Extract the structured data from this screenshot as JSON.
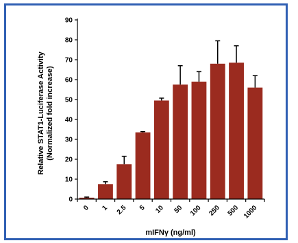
{
  "chart_data": {
    "type": "bar",
    "categories": [
      "0",
      "1",
      "2.5",
      "5",
      "10",
      "50",
      "100",
      "250",
      "500",
      "1000"
    ],
    "values": [
      0.7,
      7.5,
      17.5,
      33.5,
      49.5,
      57.5,
      59,
      68,
      68.5,
      56
    ],
    "errors": [
      0.3,
      1.2,
      4,
      0.4,
      1.2,
      9.5,
      5,
      11.5,
      8.5,
      6
    ],
    "xlabel": "mIFNγ (ng/ml)",
    "ylabel_line1": "Relative STAT1-Luciferase Activity",
    "ylabel_line2": "(Normalized fold increase)",
    "ylim": [
      0,
      90
    ],
    "yticks": [
      0,
      10,
      20,
      30,
      40,
      50,
      60,
      70,
      80,
      90
    ],
    "bar_color": "#9b2b1f",
    "error_bar_color": "#000000",
    "grid": false,
    "legend": "none"
  }
}
